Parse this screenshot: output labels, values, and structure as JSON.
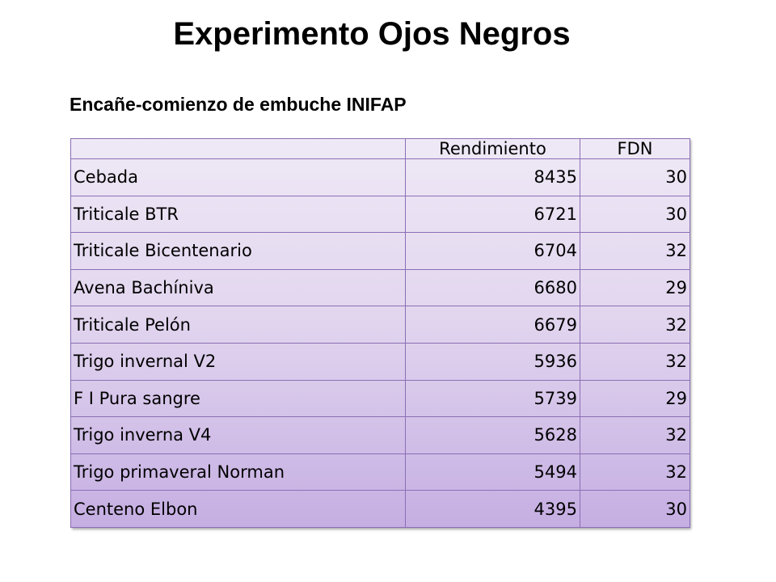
{
  "slide": {
    "title": "Experimento Ojos Negros",
    "subtitle": "Encañe-comienzo de embuche INIFAP"
  },
  "table": {
    "columns": [
      "",
      "Rendimiento",
      "FDN"
    ],
    "rows": [
      {
        "variety": "Cebada",
        "rendimiento": "8435",
        "fdn": "30"
      },
      {
        "variety": "Triticale BTR",
        "rendimiento": "6721",
        "fdn": "30"
      },
      {
        "variety": "Triticale Bicentenario",
        "rendimiento": "6704",
        "fdn": "32"
      },
      {
        "variety": "Avena Bachíniva",
        "rendimiento": "6680",
        "fdn": "29"
      },
      {
        "variety": "Triticale Pelón",
        "rendimiento": "6679",
        "fdn": "32"
      },
      {
        "variety": "Trigo invernal V2",
        "rendimiento": "5936",
        "fdn": "32"
      },
      {
        "variety": "F I Pura sangre",
        "rendimiento": "5739",
        "fdn": "29"
      },
      {
        "variety": "Trigo inverna V4",
        "rendimiento": "5628",
        "fdn": "32"
      },
      {
        "variety": "Trigo primaveral Norman",
        "rendimiento": "5494",
        "fdn": "32"
      },
      {
        "variety": "Centeno Elbon",
        "rendimiento": "4395",
        "fdn": "30"
      }
    ]
  },
  "colors": {
    "border": "#8a6fb5",
    "fill_top": "#efe9f6",
    "fill_bottom": "#c5aee2"
  }
}
